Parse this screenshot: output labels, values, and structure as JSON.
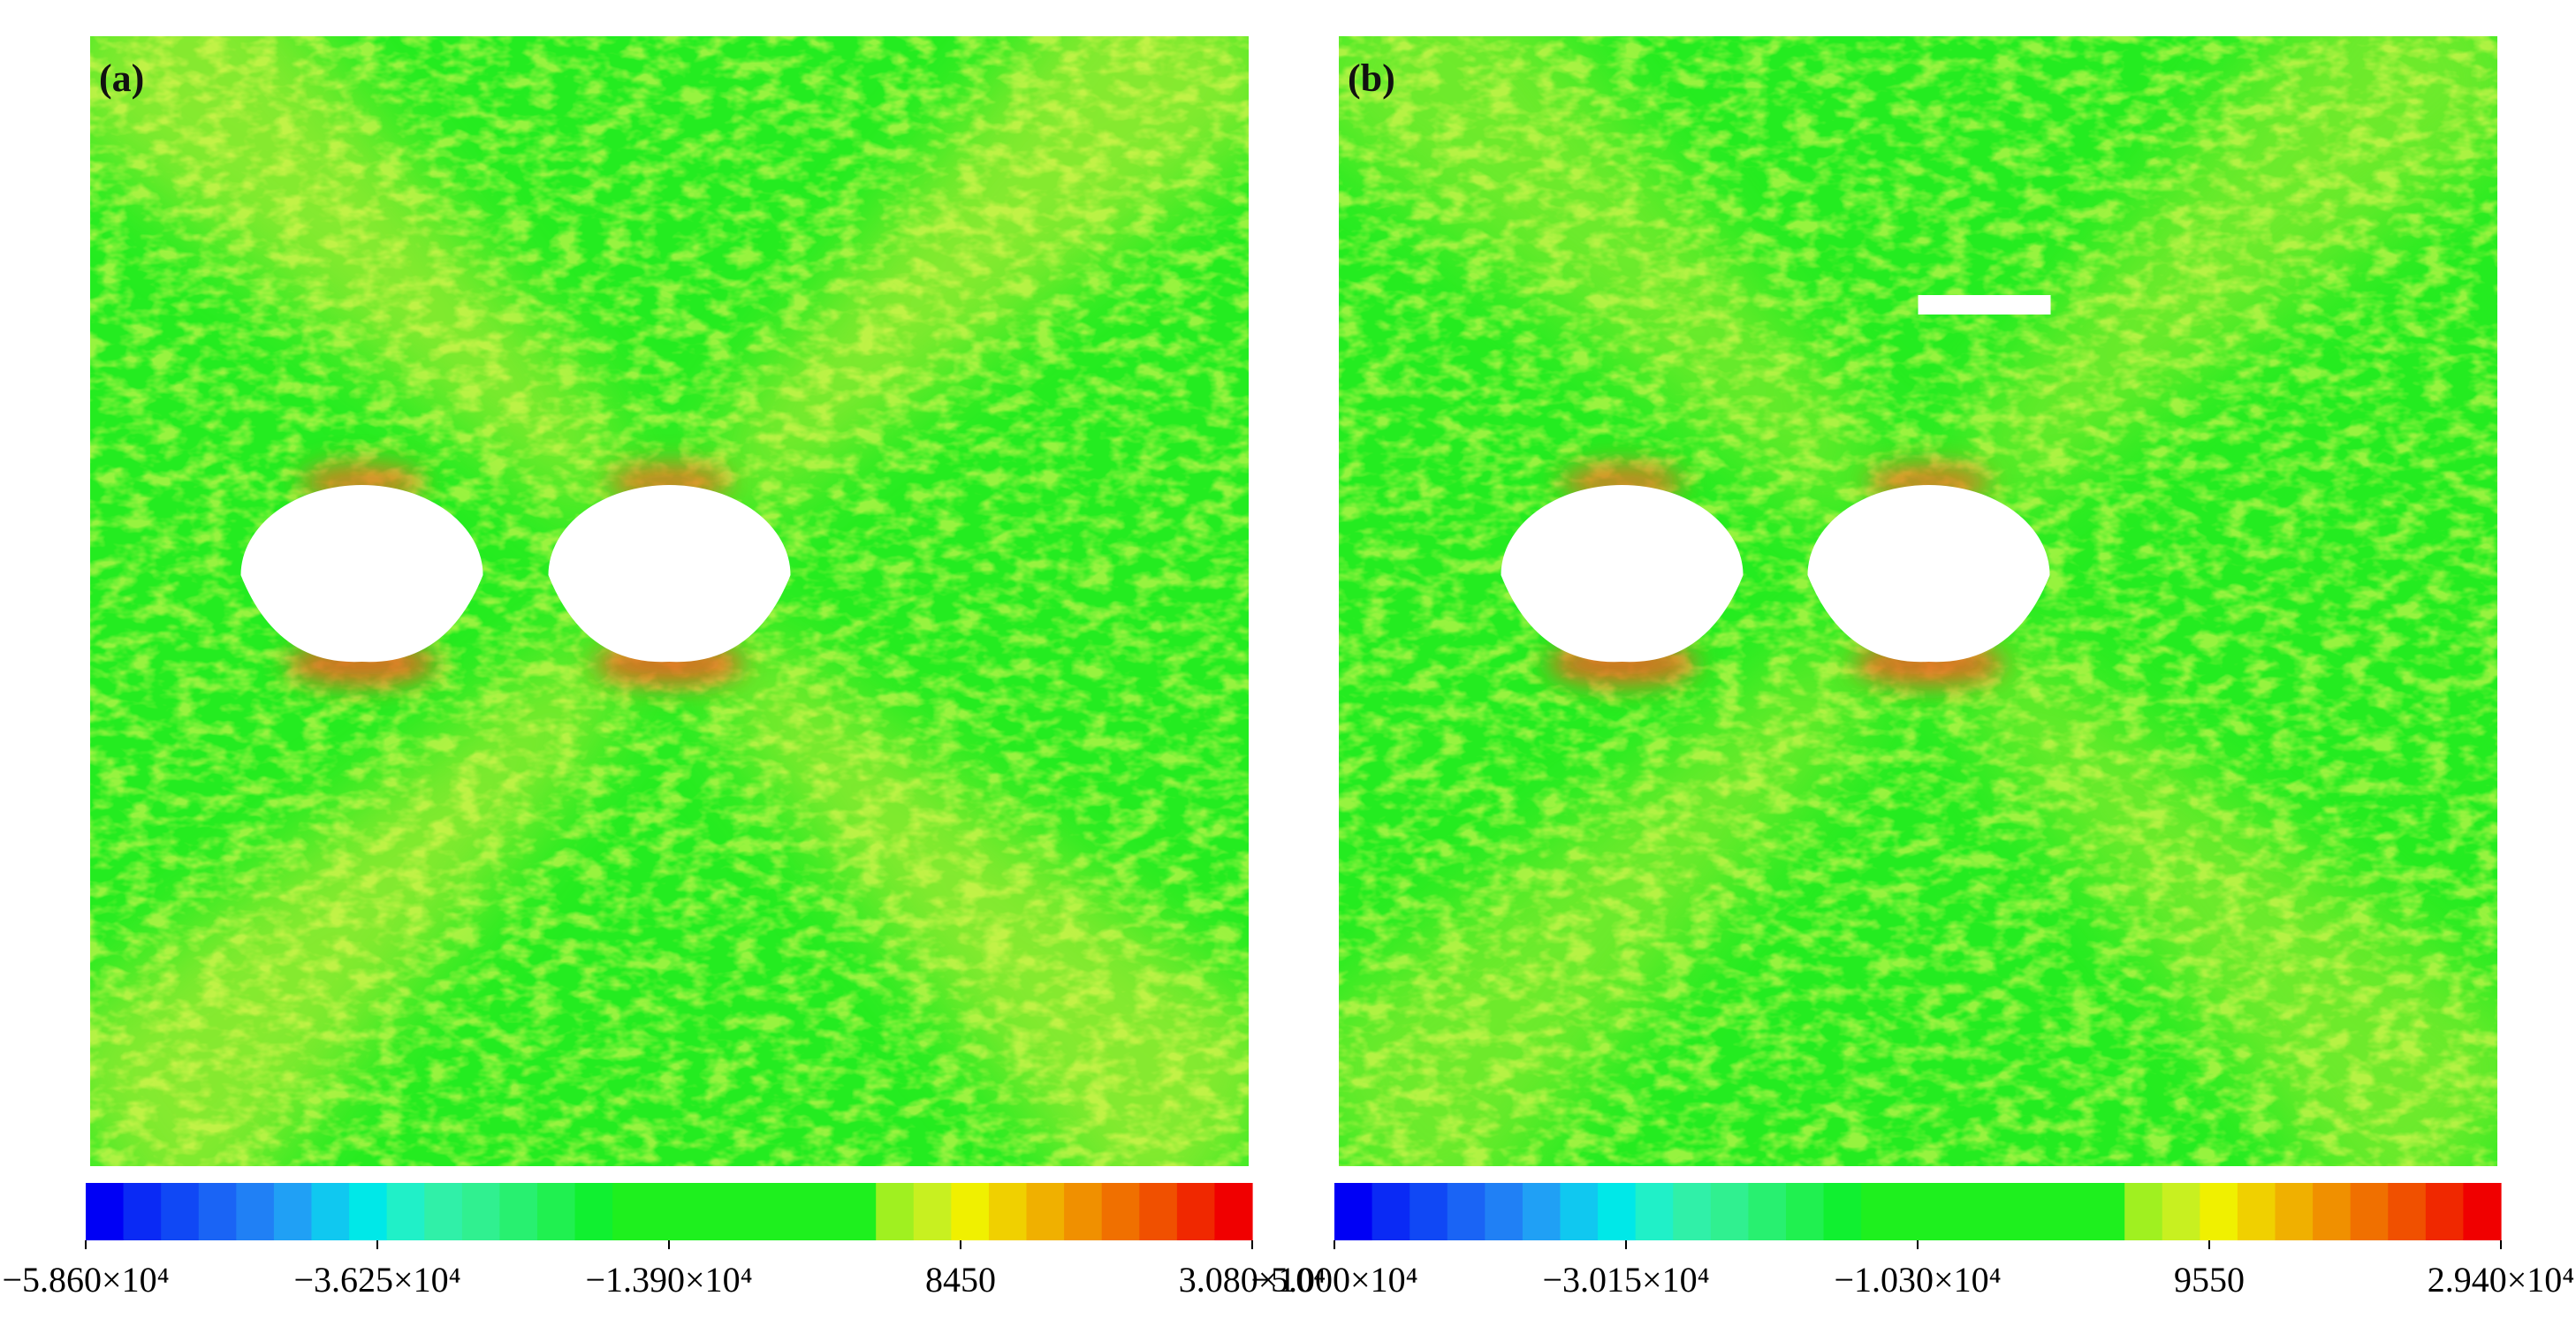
{
  "chart_data": [
    {
      "type": "contour",
      "label": "(a)",
      "zlim": [
        -58600,
        30800
      ],
      "zticks": [
        {
          "value": -58600,
          "label": "−5.860×10⁴"
        },
        {
          "value": -36250,
          "label": "−3.625×10⁴"
        },
        {
          "value": -13900,
          "label": "−1.390×10⁴"
        },
        8450,
        {
          "value": 30800,
          "label": "3.080×10⁴"
        }
      ],
      "colors": [
        "#0000f5",
        "#0a2af5",
        "#1048f5",
        "#1a64f5",
        "#2080f5",
        "#20a0f5",
        "#10c8f0",
        "#00e8e8",
        "#20f0c8",
        "#30f0a8",
        "#30f090",
        "#28f070",
        "#20f050",
        "#10f030",
        "#1ef01e",
        "#1ef01e",
        "#1ef01e",
        "#1ef01e",
        "#1ef01e",
        "#1ef01e",
        "#1ef01e",
        "#a0f020",
        "#c8f020",
        "#f0f000",
        "#f0d000",
        "#f0b000",
        "#f09000",
        "#f07000",
        "#f05000",
        "#f02800",
        "#f00000"
      ],
      "holes": 2,
      "slot": false
    },
    {
      "type": "contour",
      "label": "(b)",
      "zlim": [
        -50000,
        29400
      ],
      "zticks": [
        {
          "value": -50000,
          "label": "−5.000×10⁴"
        },
        {
          "value": -30150,
          "label": "−3.015×10⁴"
        },
        {
          "value": -10300,
          "label": "−1.030×10⁴"
        },
        9550,
        {
          "value": 29400,
          "label": "2.940×10⁴"
        }
      ],
      "colors": [
        "#0000f5",
        "#0a2af5",
        "#1048f5",
        "#1a64f5",
        "#2080f5",
        "#20a0f5",
        "#10c8f0",
        "#00e8e8",
        "#20f0c8",
        "#30f0a8",
        "#30f090",
        "#28f070",
        "#20f050",
        "#10f030",
        "#1ef01e",
        "#1ef01e",
        "#1ef01e",
        "#1ef01e",
        "#1ef01e",
        "#1ef01e",
        "#1ef01e",
        "#a0f020",
        "#c8f020",
        "#f0f000",
        "#f0d000",
        "#f0b000",
        "#f09000",
        "#f07000",
        "#f05000",
        "#f02800",
        "#f00000"
      ],
      "holes": 2,
      "slot": true
    }
  ]
}
